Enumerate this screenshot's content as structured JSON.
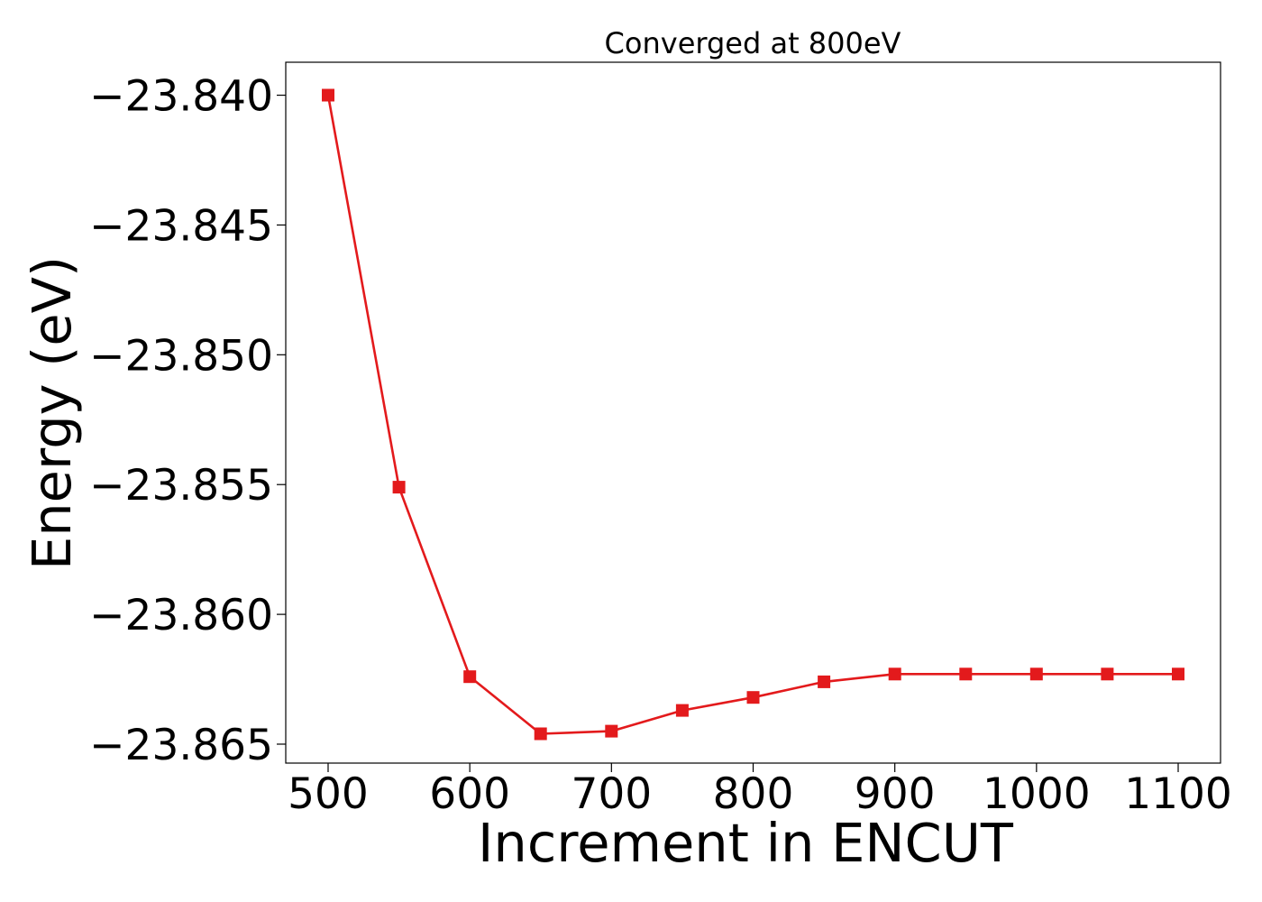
{
  "chart_data": {
    "type": "line",
    "title": "Converged at 800eV",
    "xlabel": "Increment in ENCUT",
    "ylabel": "Energy (eV)",
    "x": [
      500,
      550,
      600,
      650,
      700,
      750,
      800,
      850,
      900,
      950,
      1000,
      1050,
      1100
    ],
    "series": [
      {
        "values": [
          -23.84,
          -23.8551,
          -23.8624,
          -23.8646,
          -23.8645,
          -23.8637,
          -23.8632,
          -23.8626,
          -23.8623,
          -23.8623,
          -23.8623,
          -23.8623,
          -23.8623
        ],
        "color": "#e31a1c",
        "marker": "square"
      }
    ],
    "xticks": [
      500,
      600,
      700,
      800,
      900,
      1000,
      1100
    ],
    "yticks": [
      -23.84,
      -23.845,
      -23.85,
      -23.855,
      -23.86,
      -23.865
    ],
    "ytick_labels": [
      "−23.840",
      "−23.845",
      "−23.850",
      "−23.855",
      "−23.860",
      "−23.865"
    ],
    "xlim": [
      470.1,
      1129.9
    ],
    "ylim": [
      -23.86573,
      -23.83873
    ],
    "grid": false,
    "legend": "none"
  }
}
